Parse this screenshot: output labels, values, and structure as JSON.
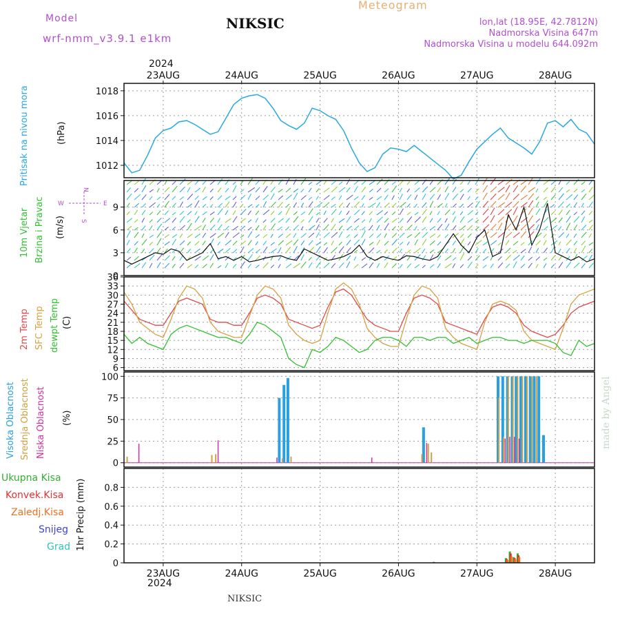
{
  "header": {
    "model_label": "Model",
    "model_name": "wrf-nmm_v3.9.1  e1km",
    "station": "NIKSIC",
    "product": "Meteogram",
    "lonlat": "lon,lat (18.95E, 42.7812N)",
    "elevation": "Nadmorska Visina 647m",
    "model_elevation": "Nadmorska Visina u modelu 644.092m",
    "footer_station": "NIKSIC",
    "watermark": "made by Angel",
    "year": "2024"
  },
  "colors": {
    "pressure": "#29a8e0",
    "temp2m": "#e04848",
    "sfc_temp": "#d8a040",
    "dewpt": "#30c030",
    "high_cloud": "#29a0e0",
    "mid_cloud": "#d0a040",
    "low_cloud": "#d030a0",
    "total_precip": "#30b030",
    "conv_precip": "#e03030",
    "frz_precip": "#f07020",
    "snow": "#4040e0",
    "grad": "#30c0c0",
    "accent": "#b050d0"
  },
  "days": [
    "23AUG",
    "24AUG",
    "25AUG",
    "26AUG",
    "27AUG",
    "28AUG"
  ],
  "wind_compass": {
    "north": "N",
    "south": "S",
    "east": "E",
    "west": "W"
  },
  "panel_labels": {
    "pressure": {
      "name": "Pritisak na nivou mora",
      "unit": "(hPa)"
    },
    "wind": {
      "name1": "10m Vjetar",
      "name2": "Brzina i Pravac",
      "unit": "(m/s)"
    },
    "temp": {
      "t2m": "2m Temp",
      "sfc": "SFC Temp",
      "dew": "dewpt Temp",
      "unit": "(C)"
    },
    "cloud": {
      "high": "Visoka Oblacnost",
      "mid": "Srednja Oblacnost",
      "low": "Niska Oblacnost",
      "unit": "(%)"
    },
    "precip": {
      "total": "Ukupna Kisa",
      "conv": "Konvek.Kisa",
      "frz": "Zaledj.Kisa",
      "snow": "Snijeg",
      "grad": "Grad",
      "unit": "1hr Precip (mm)"
    }
  },
  "chart_data": [
    {
      "type": "line",
      "name": "pressure",
      "ylabel": "(hPa)",
      "ylim": [
        1011,
        1018.6
      ],
      "yticks": [
        1012,
        1014,
        1016,
        1018
      ],
      "x": [
        -0.5,
        -0.4,
        -0.3,
        -0.2,
        -0.1,
        0,
        0.1,
        0.2,
        0.3,
        0.4,
        0.5,
        0.6,
        0.7,
        0.8,
        0.9,
        1.0,
        1.1,
        1.2,
        1.3,
        1.4,
        1.5,
        1.6,
        1.7,
        1.8,
        1.9,
        2.0,
        2.1,
        2.2,
        2.3,
        2.4,
        2.5,
        2.6,
        2.7,
        2.8,
        2.9,
        3.0,
        3.1,
        3.2,
        3.3,
        3.4,
        3.5,
        3.6,
        3.7,
        3.8,
        3.9,
        4.0,
        4.1,
        4.2,
        4.3,
        4.4,
        4.5,
        4.6,
        4.7,
        4.8,
        4.9,
        5.0,
        5.1,
        5.2,
        5.3,
        5.4,
        5.5
      ],
      "series": [
        {
          "values": [
            1012.2,
            1011.4,
            1011.6,
            1012.8,
            1014.2,
            1014.8,
            1015.0,
            1015.5,
            1015.6,
            1015.3,
            1014.9,
            1014.5,
            1014.7,
            1015.8,
            1016.9,
            1017.4,
            1017.6,
            1017.7,
            1017.4,
            1016.6,
            1015.6,
            1015.2,
            1014.9,
            1015.4,
            1016.6,
            1016.4,
            1016.0,
            1015.7,
            1014.8,
            1013.4,
            1012.2,
            1011.5,
            1011.8,
            1012.9,
            1013.4,
            1013.3,
            1013.1,
            1013.6,
            1013.1,
            1012.6,
            1012.1,
            1011.6,
            1010.9,
            1011.2,
            1012.3,
            1013.3,
            1013.9,
            1014.5,
            1015.0,
            1014.2,
            1013.8,
            1013.4,
            1012.9,
            1013.9,
            1015.4,
            1015.6,
            1015.1,
            1015.7,
            1014.9,
            1014.6,
            1013.7
          ]
        }
      ]
    },
    {
      "type": "line",
      "name": "wind_speed",
      "ylabel": "(m/s)",
      "ylim": [
        0,
        12.5
      ],
      "yticks": [
        0,
        3,
        6,
        9
      ],
      "x": [
        -0.5,
        -0.4,
        -0.3,
        -0.2,
        -0.1,
        0,
        0.1,
        0.2,
        0.3,
        0.4,
        0.5,
        0.6,
        0.7,
        0.8,
        0.9,
        1.0,
        1.1,
        1.2,
        1.3,
        1.4,
        1.5,
        1.6,
        1.7,
        1.8,
        1.9,
        2.0,
        2.1,
        2.2,
        2.3,
        2.4,
        2.5,
        2.6,
        2.7,
        2.8,
        2.9,
        3.0,
        3.1,
        3.2,
        3.3,
        3.4,
        3.5,
        3.6,
        3.7,
        3.8,
        3.9,
        4.0,
        4.1,
        4.2,
        4.3,
        4.4,
        4.5,
        4.6,
        4.7,
        4.8,
        4.9,
        5.0,
        5.1,
        5.2,
        5.3,
        5.4,
        5.5
      ],
      "series": [
        {
          "values": [
            2.0,
            1.5,
            2.0,
            2.5,
            3.0,
            2.8,
            3.5,
            3.2,
            2.0,
            2.5,
            3.0,
            4.2,
            2.2,
            2.5,
            2.0,
            2.5,
            1.8,
            2.0,
            2.3,
            2.5,
            2.6,
            2.2,
            2.0,
            3.5,
            3.0,
            2.5,
            2.0,
            2.2,
            2.5,
            3.0,
            4.0,
            2.5,
            2.0,
            2.5,
            2.2,
            2.0,
            2.6,
            2.5,
            2.2,
            2.0,
            2.5,
            4.0,
            5.5,
            4.0,
            3.0,
            5.0,
            6.0,
            2.5,
            3.0,
            8.0,
            6.0,
            9.0,
            4.0,
            6.0,
            9.5,
            3.0,
            2.5,
            2.0,
            2.5,
            1.8,
            2.2
          ]
        }
      ]
    },
    {
      "type": "line",
      "name": "temperature",
      "ylabel": "(C)",
      "ylim": [
        5,
        36
      ],
      "yticks": [
        6,
        9,
        12,
        15,
        18,
        21,
        24,
        27,
        30,
        33,
        36
      ],
      "x": [
        -0.5,
        -0.4,
        -0.3,
        -0.2,
        -0.1,
        0,
        0.1,
        0.2,
        0.3,
        0.4,
        0.5,
        0.6,
        0.7,
        0.8,
        0.9,
        1.0,
        1.1,
        1.2,
        1.3,
        1.4,
        1.5,
        1.6,
        1.7,
        1.8,
        1.9,
        2.0,
        2.1,
        2.2,
        2.3,
        2.4,
        2.5,
        2.6,
        2.7,
        2.8,
        2.9,
        3.0,
        3.1,
        3.2,
        3.3,
        3.4,
        3.5,
        3.6,
        3.7,
        3.8,
        3.9,
        4.0,
        4.1,
        4.2,
        4.3,
        4.4,
        4.5,
        4.6,
        4.7,
        4.8,
        4.9,
        5.0,
        5.1,
        5.2,
        5.3,
        5.4,
        5.5
      ],
      "series": [
        {
          "name": "2m Temp",
          "values": [
            28,
            25,
            22,
            21,
            20,
            20,
            24,
            28,
            29,
            28,
            27,
            22,
            21,
            21,
            20,
            20,
            24,
            29,
            30,
            29,
            27,
            22,
            21,
            20,
            19,
            20,
            26,
            31,
            32,
            30,
            26,
            22,
            20,
            19,
            18,
            18,
            24,
            29,
            30,
            29,
            27,
            21,
            20,
            19,
            18,
            17,
            22,
            26,
            27,
            26,
            24,
            20,
            18,
            17,
            16,
            17,
            20,
            24,
            26,
            27,
            28
          ]
        },
        {
          "name": "SFC Temp",
          "values": [
            31,
            27,
            21,
            19,
            17,
            16,
            22,
            29,
            33,
            32,
            29,
            21,
            18,
            17,
            16,
            16,
            23,
            30,
            33,
            32,
            29,
            20,
            17,
            15,
            14,
            15,
            24,
            32,
            34,
            32,
            27,
            19,
            16,
            14,
            13,
            13,
            22,
            30,
            33,
            32,
            29,
            19,
            16,
            14,
            13,
            12,
            21,
            27,
            28,
            27,
            25,
            18,
            15,
            14,
            13,
            12,
            19,
            27,
            30,
            31,
            32
          ]
        },
        {
          "name": "dewpt Temp",
          "values": [
            17,
            14,
            16,
            14,
            13,
            12,
            17,
            19,
            20,
            19,
            18,
            17,
            16,
            16,
            15,
            14,
            17,
            21,
            20,
            18,
            16,
            9,
            7,
            6,
            12,
            11,
            13,
            16,
            15,
            13,
            11,
            12,
            15,
            16,
            16,
            15,
            13,
            16,
            16,
            15,
            16,
            16,
            14,
            15,
            16,
            14,
            15,
            16,
            16,
            15,
            15,
            14,
            15,
            15,
            15,
            14,
            11,
            10,
            15,
            13,
            14
          ]
        }
      ]
    },
    {
      "type": "bar",
      "name": "cloud_cover",
      "ylabel": "(%)",
      "ylim": [
        -5,
        105
      ],
      "yticks": [
        0,
        25,
        50,
        75,
        100
      ],
      "series": [
        {
          "name": "Visoka Oblacnost",
          "x": [
            1.48,
            1.54,
            1.59,
            3.32,
            4.27,
            4.33,
            4.39,
            4.45,
            4.5,
            4.56,
            4.62,
            4.68,
            4.73,
            4.79,
            4.85
          ],
          "values": [
            75,
            90,
            98,
            41,
            100,
            100,
            100,
            100,
            100,
            100,
            100,
            100,
            100,
            100,
            32
          ]
        },
        {
          "name": "Srednja Oblacnost",
          "x": [
            -0.46,
            0.62,
            0.67,
            1.52,
            1.63,
            3.3,
            3.38,
            3.42,
            4.28,
            4.34,
            4.4,
            4.46,
            4.52,
            4.58,
            4.64,
            4.7,
            4.76
          ],
          "values": [
            7,
            9,
            10,
            5,
            7,
            10,
            22,
            12,
            75,
            30,
            100,
            100,
            100,
            100,
            100,
            100,
            100
          ]
        },
        {
          "name": "Niska Oblacnost",
          "x": [
            -0.31,
            0.7,
            1.45,
            2.66,
            3.36,
            4.36,
            4.42,
            4.48,
            4.54
          ],
          "values": [
            22,
            26,
            6,
            6,
            23,
            28,
            30,
            30,
            28
          ]
        }
      ]
    },
    {
      "type": "bar",
      "name": "precipitation",
      "ylabel": "1hr Precip (mm)",
      "ylim": [
        0,
        1.0
      ],
      "yticks": [
        0,
        0.2,
        0.4,
        0.6,
        0.8
      ],
      "series": [
        {
          "name": "Ukupna Kisa",
          "x": [
            3.45,
            4.37,
            4.42,
            4.47,
            4.52
          ],
          "values": [
            0.01,
            0.05,
            0.12,
            0.06,
            0.1
          ]
        },
        {
          "name": "Konvek.Kisa",
          "x": [
            3.46,
            4.38,
            4.43,
            4.48,
            4.53
          ],
          "values": [
            0.005,
            0.04,
            0.1,
            0.05,
            0.08
          ]
        },
        {
          "name": "Zaledj.Kisa",
          "x": [
            4.39,
            4.44,
            4.49,
            4.54
          ],
          "values": [
            0.03,
            0.07,
            0.04,
            0.06
          ]
        }
      ]
    }
  ]
}
